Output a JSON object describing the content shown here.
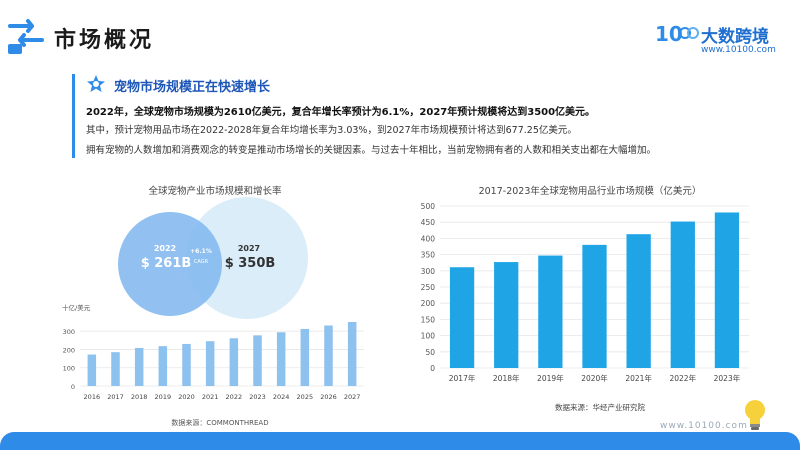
{
  "header": {
    "title": "市场概况",
    "logo_mark": "10",
    "logo_name": "大数跨境",
    "logo_url": "www.10100.com"
  },
  "intro": {
    "heading": "宠物市场规模正在快速增长",
    "line1": "2022年，全球宠物市场规模为2610亿美元，复合年增长率预计为6.1%，2027年预计规模将达到3500亿美元。",
    "line2": "其中，预计宠物用品市场在2022-2028年复合年均增长率为3.03%，到2027年市场规模预计将达到677.25亿美元。",
    "line3": "拥有宠物的人数增加和消费观念的转变是推动市场增长的关键因素。与过去十年相比，当前宠物拥有者的人数和相关支出都在大幅增加。"
  },
  "venn": {
    "a_year": "2022",
    "a_value": "$ 261B",
    "b_year": "2027",
    "b_value": "$ 350B",
    "rate": "+6.1%",
    "rate_label": "CAGR"
  },
  "left_source": "数据来源：COMMONTHREAD",
  "right_source": "数据来源：华经产业研究院",
  "watermark": "www.10100.com",
  "colors": {
    "accent": "#2f8be8",
    "bar_left": "#8ec2ee",
    "bar_right": "#1fa5e6"
  },
  "chart_data": [
    {
      "type": "bar",
      "title": "全球宠物产业市场规模和增长率",
      "ylabel": "十亿/美元",
      "categories": [
        "2016",
        "2017",
        "2018",
        "2019",
        "2020",
        "2021",
        "2022",
        "2023",
        "2024",
        "2025",
        "2026",
        "2027"
      ],
      "values": [
        172,
        185,
        208,
        218,
        230,
        245,
        261,
        277,
        294,
        312,
        331,
        350
      ],
      "ylim": [
        0,
        350
      ],
      "yticks": [
        0,
        100,
        200,
        300
      ],
      "grid": true
    },
    {
      "type": "bar",
      "title": "2017-2023年全球宠物用品行业市场规模（亿美元）",
      "categories": [
        "2017年",
        "2018年",
        "2019年",
        "2020年",
        "2021年",
        "2022年",
        "2023年"
      ],
      "values": [
        311,
        327,
        347,
        380,
        413,
        452,
        480
      ],
      "ylim": [
        0,
        500
      ],
      "yticks": [
        0,
        50,
        100,
        150,
        200,
        250,
        300,
        350,
        400,
        450,
        500
      ],
      "grid": true
    }
  ]
}
